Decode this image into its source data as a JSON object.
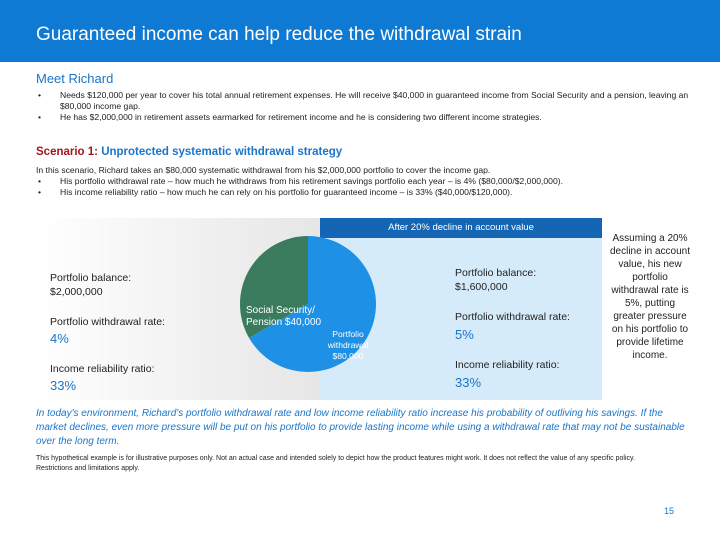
{
  "header": {
    "title": "Guaranteed income can help reduce the withdrawal strain"
  },
  "intro": {
    "heading": "Meet Richard",
    "bullets": [
      "Needs $120,000 per year to cover his total annual retirement expenses. He will receive $40,000 in guaranteed  income from Social Security and a pension, leaving an $80,000 income gap.",
      "He has $2,000,000 in retirement assets earmarked for retirement income and he is considering two different income strategies."
    ]
  },
  "scenario": {
    "label": "Scenario 1:",
    "title": "Unprotected systematic withdrawal strategy",
    "text": "In this scenario, Richard takes an $80,000 systematic withdrawal from his $2,000,000 portfolio to cover the income gap.",
    "bullets": [
      "His portfolio withdrawal rate – how much he withdraws from his retirement savings portfolio each year – is 4% ($80,000/$2,000,000).",
      "His income reliability ratio – how much he can rely on his portfolio for guaranteed income – is 33% ($40,000/$120,000)."
    ]
  },
  "panel": {
    "right_header": "After 20% decline in account value",
    "left": {
      "balance": "Portfolio balance: $2,000,000",
      "rate_label": "Portfolio withdrawal rate:",
      "rate": "4%",
      "ratio_label": "Income reliability ratio:",
      "ratio": "33%"
    },
    "right": {
      "balance": "Portfolio balance: $1,600,000",
      "rate_label": "Portfolio withdrawal rate:",
      "rate": "5%",
      "ratio_label": "Income reliability ratio:",
      "ratio": "33%"
    },
    "pie": {
      "ss_label": "Social Security/ Pension $40,000",
      "portfolio_label": "Portfolio withdrawal $80,000"
    },
    "side_note": "Assuming a 20% decline in account value, his new portfolio withdrawal rate is 5%, putting greater pressure on his portfolio to provide lifetime income."
  },
  "summary": "In today's environment, Richard's portfolio withdrawal rate and low income reliability ratio increase his probability of outliving his savings. If the market declines, even more pressure will be put on his portfolio to provide lasting income while using a withdrawal rate that may not be sustainable over the long term.",
  "footnote": "This hypothetical example is for illustrative purposes only. Not an actual case and intended solely to depict how the product features might work. It does not reflect the value of any specific policy. Restrictions and limitations apply.",
  "page_number": "15"
}
